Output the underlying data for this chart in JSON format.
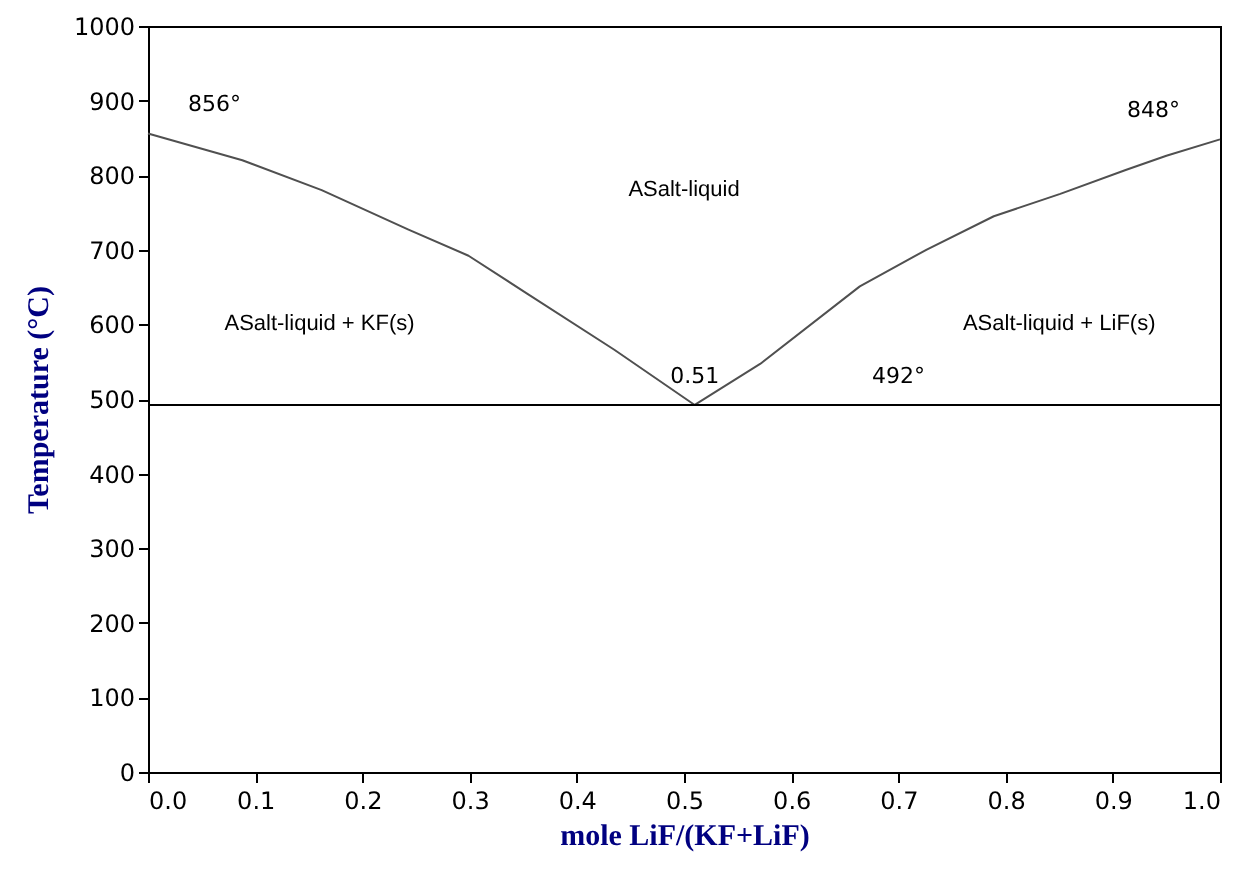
{
  "chart_data": {
    "type": "line",
    "xlabel": "mole LiF/(KF+LiF)",
    "ylabel": "Temperature (°C)",
    "xlim": [
      0,
      1
    ],
    "ylim": [
      0,
      1000
    ],
    "xticks": [
      {
        "value": 0,
        "label": "0.0"
      },
      {
        "value": 0.1,
        "label": "0.1"
      },
      {
        "value": 0.2,
        "label": "0.2"
      },
      {
        "value": 0.3,
        "label": "0.3"
      },
      {
        "value": 0.4,
        "label": "0.4"
      },
      {
        "value": 0.5,
        "label": "0.5"
      },
      {
        "value": 0.6,
        "label": "0.6"
      },
      {
        "value": 0.7,
        "label": "0.7"
      },
      {
        "value": 0.8,
        "label": "0.8"
      },
      {
        "value": 0.9,
        "label": "0.9"
      },
      {
        "value": 1,
        "label": "1.0"
      }
    ],
    "yticks": [
      0,
      100,
      200,
      300,
      400,
      500,
      600,
      700,
      800,
      900,
      1000
    ],
    "grid": false,
    "marker": "none",
    "line_style": "solid",
    "series": [
      {
        "color": "#505050",
        "x": [
          0,
          0.088,
          0.162,
          0.243,
          0.299,
          0.354,
          0.435,
          0.51
        ],
        "values": [
          856,
          820,
          780,
          727,
          692,
          641,
          566,
          492
        ]
      },
      {
        "color": "#505050",
        "x": [
          0.51,
          0.571,
          0.664,
          0.726,
          0.789,
          0.851,
          0.912,
          0.95,
          1
        ],
        "values": [
          492,
          547,
          651,
          700,
          745,
          775,
          807,
          826,
          848
        ]
      },
      {
        "color": "#000000",
        "x": [
          0,
          1
        ],
        "values": [
          492,
          492
        ]
      }
    ],
    "annotations": [
      {
        "text": "856°",
        "x": 0,
        "y": 856
      },
      {
        "text": "848°",
        "x": 1,
        "y": 848
      },
      {
        "text": "0.51",
        "x": 0.51,
        "y": 492
      },
      {
        "text": "492°",
        "x": 0.7,
        "y": 492
      },
      "ASalt-liquid",
      "ASalt-liquid + KF(s)",
      "ASalt-liquid + LiF(s)"
    ]
  }
}
